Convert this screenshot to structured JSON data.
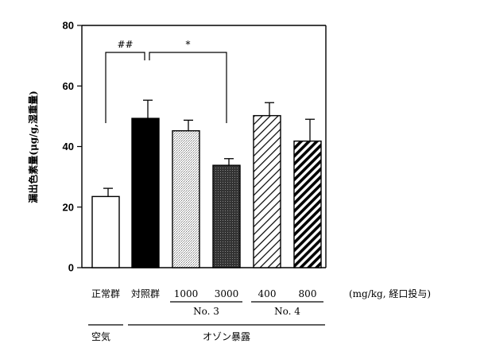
{
  "chart_data": {
    "type": "bar",
    "ylabel": "漏出色素量(μg/g,湿重量)",
    "ylim": [
      0,
      80
    ],
    "yticks": [
      0,
      20,
      40,
      60,
      80
    ],
    "grid": false,
    "categories": [
      "正常群",
      "対照群",
      "1000",
      "3000",
      "400",
      "800"
    ],
    "values": [
      23.5,
      49.3,
      45.2,
      33.8,
      50.2,
      41.8
    ],
    "errors": [
      2.7,
      6.0,
      3.5,
      2.2,
      4.3,
      7.2
    ],
    "fills": [
      "white",
      "black",
      "light-dots",
      "dark-dots",
      "sparse-diagonal",
      "dense-diagonal"
    ],
    "groups": [
      {
        "label": "No. 3",
        "from": 2,
        "to": 3
      },
      {
        "label": "No. 4",
        "from": 4,
        "to": 5
      }
    ],
    "unit_label": "(mg/kg,  経口投与)",
    "conditions": [
      {
        "label": "空気",
        "from": 0,
        "to": 0
      },
      {
        "label": "オゾン暴露",
        "from": 1,
        "to": 5
      }
    ],
    "significance": [
      {
        "from": 0,
        "to": 1,
        "label": "##"
      },
      {
        "from": 1,
        "to": 3,
        "label": "*"
      }
    ]
  }
}
